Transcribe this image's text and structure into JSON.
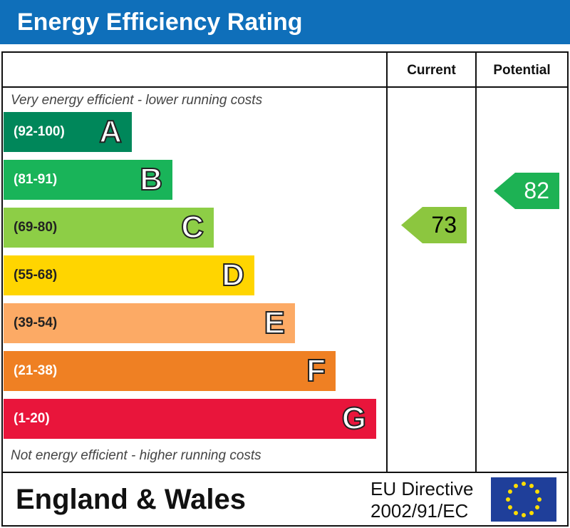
{
  "title": "Energy Efficiency Rating",
  "columns": {
    "current": "Current",
    "potential": "Potential"
  },
  "notes": {
    "top": "Very energy efficient - lower running costs",
    "bottom": "Not energy efficient - higher running costs"
  },
  "footer": {
    "region": "England & Wales",
    "directive_line1": "EU Directive",
    "directive_line2": "2002/91/EC"
  },
  "chart_data": {
    "type": "bar",
    "categories": [
      "A",
      "B",
      "C",
      "D",
      "E",
      "F",
      "G"
    ],
    "ranges": [
      "(92-100)",
      "(81-91)",
      "(69-80)",
      "(55-68)",
      "(39-54)",
      "(21-38)",
      "(1-20)"
    ],
    "colors": [
      "#00875a",
      "#19b459",
      "#8dce46",
      "#ffd500",
      "#fcaa65",
      "#ef8023",
      "#e9153b"
    ],
    "current": {
      "value": 73,
      "band": "C",
      "color": "#8cc63f"
    },
    "potential": {
      "value": 82,
      "band": "B",
      "color": "#1db254"
    }
  }
}
